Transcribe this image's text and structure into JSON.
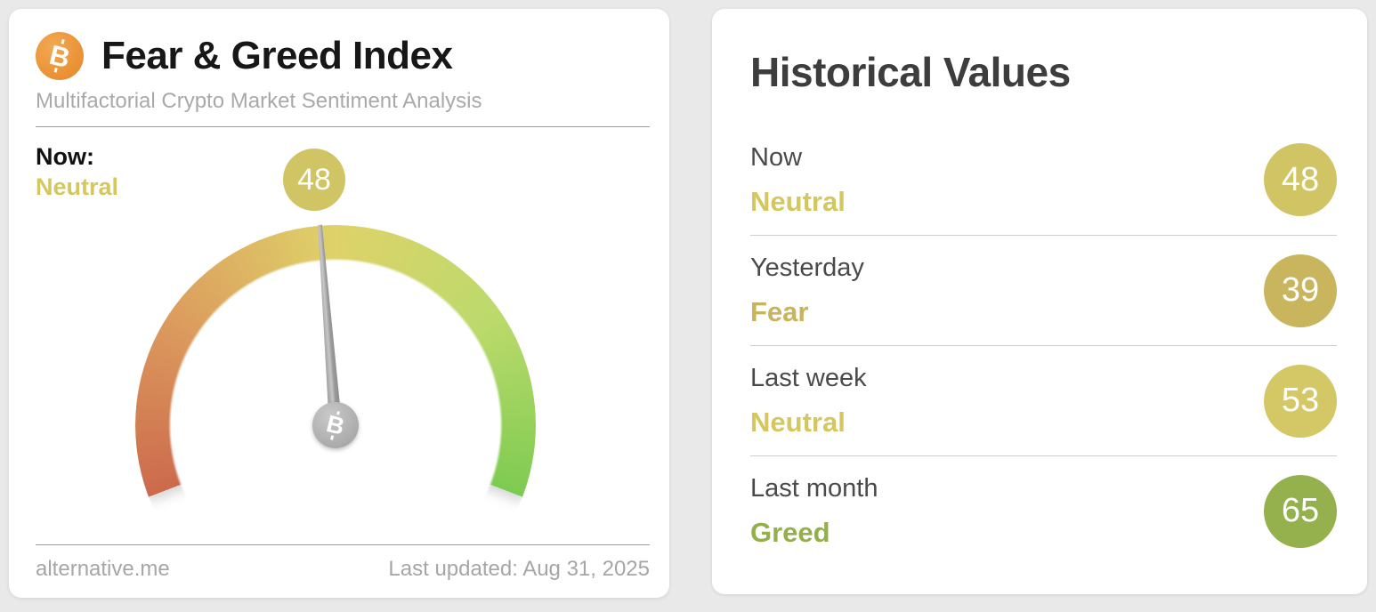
{
  "gauge_card": {
    "title": "Fear & Greed Index",
    "subtitle": "Multifactorial Crypto Market Sentiment Analysis",
    "bitcoin_glyph": "B",
    "now_label": "Now:",
    "now_classification": "Neutral",
    "now_class_style": "color:#d4c75f",
    "now_value": 48,
    "badge_style": "background:#d1c464",
    "footer_left": "alternative.me",
    "footer_right": "Last updated: Aug 31, 2025"
  },
  "historical_card": {
    "title": "Historical Values",
    "rows": [
      {
        "label": "Now",
        "classification": "Neutral",
        "value": 48,
        "class_style": "color:#d4c75f",
        "badge_style": "background:#d1c464"
      },
      {
        "label": "Yesterday",
        "classification": "Fear",
        "value": 39,
        "class_style": "color:#c9b45c",
        "badge_style": "background:#c9b55e"
      },
      {
        "label": "Last week",
        "classification": "Neutral",
        "value": 53,
        "class_style": "color:#d4c75f",
        "badge_style": "background:#d3c766"
      },
      {
        "label": "Last month",
        "classification": "Greed",
        "value": 65,
        "class_style": "color:#94b04c",
        "badge_style": "background:#94b14e"
      }
    ]
  },
  "chart_data": {
    "type": "gauge",
    "title": "Fear & Greed Index",
    "value": 48,
    "min": 0,
    "max": 100,
    "classification": "Neutral",
    "start_deg": 249,
    "sweep_deg": 222,
    "color_stops": [
      "#cc6a4c",
      "#dc9d5e",
      "#ded269",
      "#bcda6c",
      "#7ecb51"
    ],
    "last_updated": "Aug 31, 2025",
    "historical": [
      {
        "label": "Now",
        "classification": "Neutral",
        "value": 48
      },
      {
        "label": "Yesterday",
        "classification": "Fear",
        "value": 39
      },
      {
        "label": "Last week",
        "classification": "Neutral",
        "value": 53
      },
      {
        "label": "Last month",
        "classification": "Greed",
        "value": 65
      }
    ]
  }
}
